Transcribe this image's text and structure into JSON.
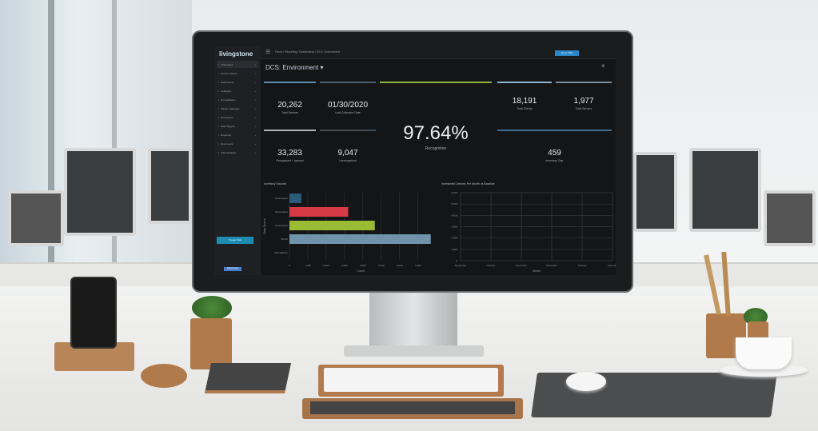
{
  "app": {
    "logo": "livingstone",
    "breadcrumb": "Home / Reporting / Dashboards / DCS: Environment",
    "top_button": "Go to Tabs",
    "page_title": "DCS: Environment ▾"
  },
  "sidebar": {
    "items": [
      {
        "label": "All Sources"
      },
      {
        "label": "Source Options"
      },
      {
        "label": "Dashboards"
      },
      {
        "label": "Collection"
      },
      {
        "label": "Normalization"
      },
      {
        "label": "Master Catalogue"
      },
      {
        "label": "Recognition"
      },
      {
        "label": "Data Tagging"
      },
      {
        "label": "Reporting"
      },
      {
        "label": "Documents"
      },
      {
        "label": "Administration"
      }
    ],
    "button": "Create Task",
    "footer_button": "Report Issue"
  },
  "kpis": {
    "total_devices": {
      "value": "20,262",
      "label": "Total Devices",
      "color": "#5b8fb0"
    },
    "last_collection": {
      "value": "01/30/2020",
      "label": "Last Collection Date",
      "color": "#4a5f70"
    },
    "recognition": {
      "value": "97.64%",
      "label": "Recognition",
      "color": "#8fb53a"
    },
    "total_clients": {
      "value": "18,191",
      "label": "Total Clients",
      "color": "#8fb4cf"
    },
    "total_servers": {
      "value": "1,977",
      "label": "Total Servers",
      "color": "#7d8f9c"
    },
    "recognised_ignored": {
      "value": "33,283",
      "label": "Recognised + Ignored",
      "color": "#b0b4b8"
    },
    "unrecognised": {
      "value": "9,047",
      "label": "Unrecognised",
      "color": "#3e4c58"
    },
    "inventory_gap": {
      "value": "459",
      "label": "Inventory Gap",
      "color": "#3f6f95"
    }
  },
  "chart_data": [
    {
      "type": "bar",
      "orientation": "horizontal",
      "title": "Inventory Sources",
      "xlabel": "Count",
      "ylabel": "Data Source",
      "categories": [
        "Lansweeper",
        "ServiceNow",
        "Lansweeper",
        "SCCM",
        "ManualEntry"
      ],
      "values": [
        650,
        3200,
        4650,
        7700,
        0
      ],
      "colors": [
        "#2c5a7a",
        "#d63a45",
        "#9bbb35",
        "#6f93ab",
        "#666666"
      ],
      "xticks": [
        "0",
        "1,000",
        "2,000",
        "3,000",
        "4,000",
        "5,000",
        "6,000",
        "7,000"
      ],
      "xlim": [
        0,
        7800
      ],
      "grid": true
    },
    {
      "type": "line",
      "title": "Inventoried Devices Per Month vs Baseline",
      "xlabel": "Month",
      "ylabel": "",
      "categories": [
        "September",
        "October",
        "November",
        "December",
        "January",
        "February"
      ],
      "yticks": [
        "0",
        "1,000",
        "2,000",
        "3,000",
        "4,000",
        "5,000",
        "6,000"
      ],
      "ylim": [
        0,
        6000
      ],
      "series": [],
      "grid": true
    }
  ]
}
